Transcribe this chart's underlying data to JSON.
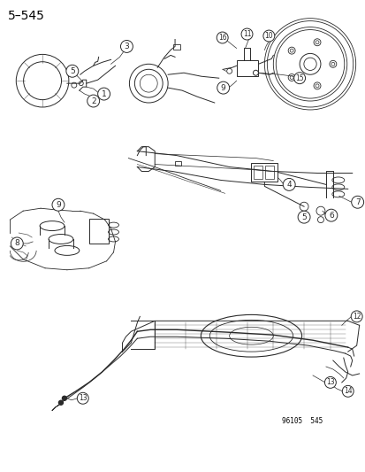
{
  "page_number": "5–545",
  "doc_number": "96105  545",
  "background_color": "#ffffff",
  "line_color": "#2a2a2a",
  "text_color": "#000000",
  "title_fontsize": 10,
  "label_fontsize": 6.5,
  "figsize": [
    4.14,
    5.33
  ],
  "dpi": 100
}
